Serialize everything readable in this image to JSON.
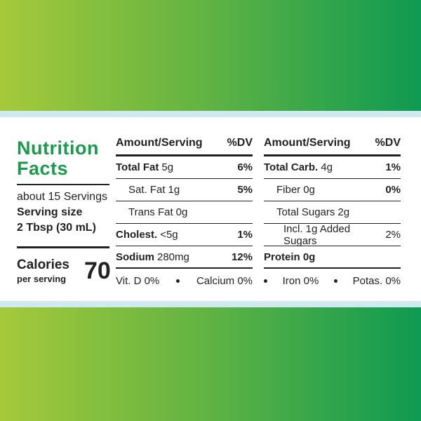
{
  "header": {
    "title": "Nutrition Facts",
    "servings": "about 15 Servings",
    "serving_size_label": "Serving size",
    "serving_size": "2 Tbsp (30 mL)",
    "calories_label": "Calories",
    "calories_sub": "per serving",
    "calories": "70"
  },
  "left_table": {
    "headers": [
      "Amount/Serving",
      "%DV"
    ],
    "rows": [
      {
        "name": "Total Fat",
        "amount": "5g",
        "dv": "6%"
      },
      {
        "name": "Sat. Fat",
        "amount": "1g",
        "dv": "5%"
      },
      {
        "name": "Trans Fat",
        "amount": "0g"
      },
      {
        "name": "Cholest.",
        "amount": "<5g",
        "dv": "1%"
      },
      {
        "name": "Sodium",
        "amount": "280mg",
        "dv": "12%"
      }
    ],
    "footer": [
      "Vit. D 0%",
      "Calcium 0%"
    ]
  },
  "right_table": {
    "headers": [
      "Amount/Serving",
      "%DV"
    ],
    "rows": [
      {
        "name": "Total Carb.",
        "amount": "4g",
        "dv": "1%"
      },
      {
        "name": "Fiber",
        "amount": "0g",
        "dv": "0%"
      },
      {
        "name": "Total Sugars",
        "amount": "2g"
      },
      {
        "name": "Incl. 1g Added Sugars",
        "dv": "2%"
      },
      {
        "name": "Protein 0g"
      }
    ],
    "footer": [
      "Iron 0%",
      "Potas. 0%"
    ]
  }
}
